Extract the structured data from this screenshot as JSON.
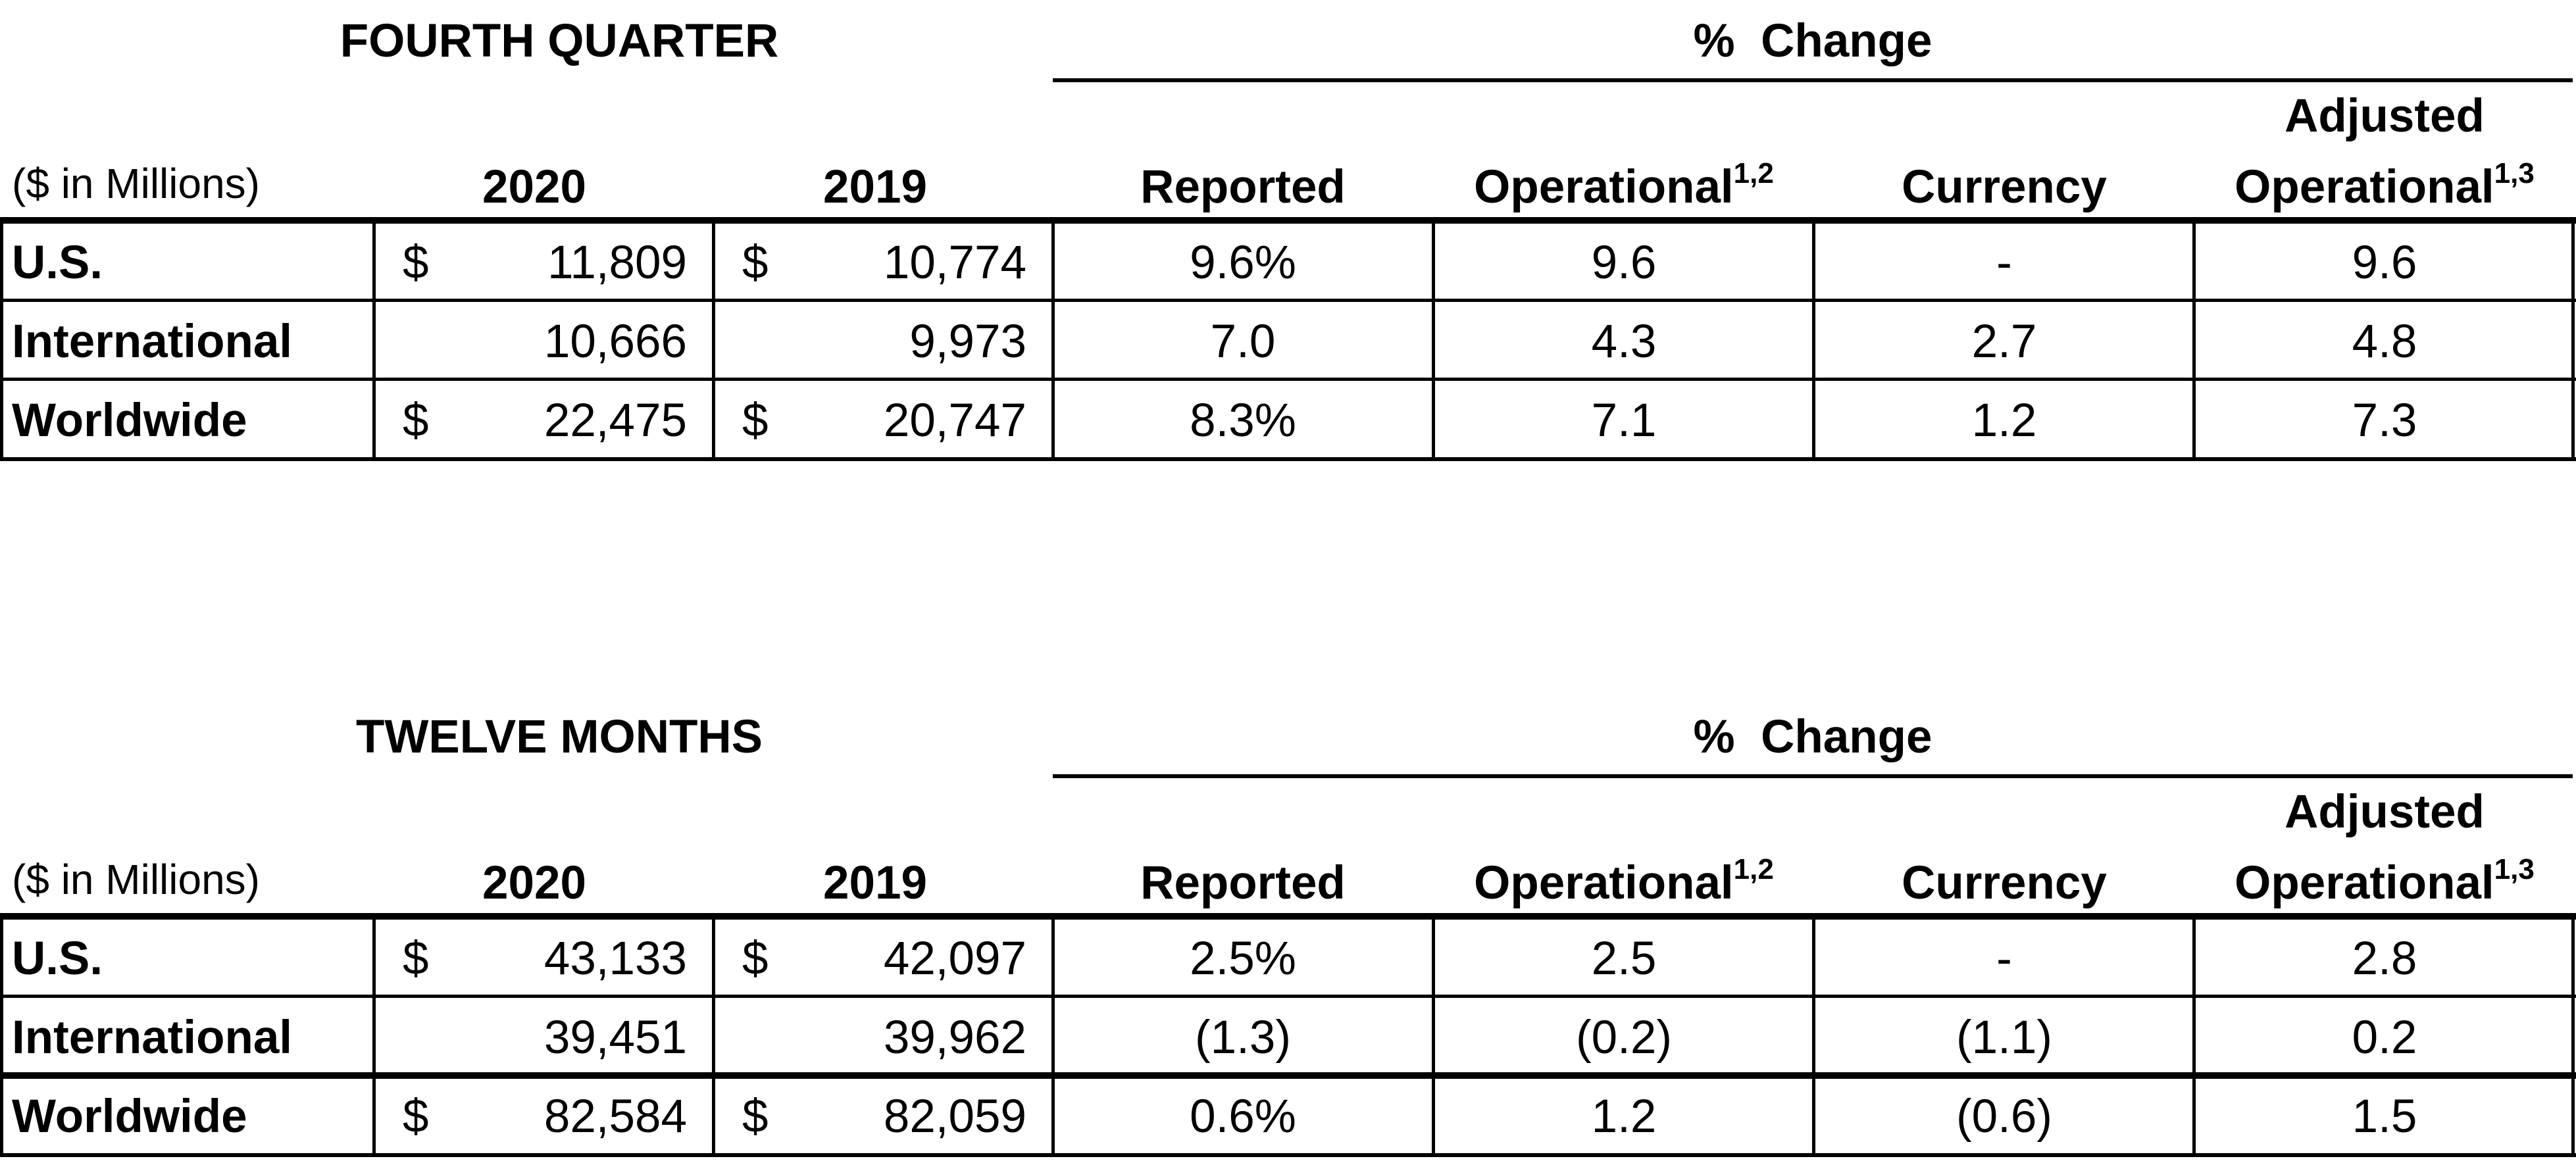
{
  "headers": {
    "units": "($ in Millions)",
    "year_2020": "2020",
    "year_2019": "2019",
    "pct_change": "%  Change",
    "reported": "Reported",
    "operational": "Operational",
    "operational_sup": "1,2",
    "currency": "Currency",
    "adjusted_line1": "Adjusted",
    "adjusted_line2": "Operational",
    "adjusted_sup": "1,3"
  },
  "quarter": {
    "title": "FOURTH QUARTER",
    "rows": [
      {
        "label": "U.S.",
        "d2020": "$",
        "v2020": "11,809",
        "d2019": "$",
        "v2019": "10,774",
        "reported": "9.6%",
        "operational": "9.6",
        "currency": "-",
        "adjusted": "9.6"
      },
      {
        "label": "International",
        "d2020": "",
        "v2020": "10,666",
        "d2019": "",
        "v2019": "9,973",
        "reported": "7.0",
        "operational": "4.3",
        "currency": "2.7",
        "adjusted": "4.8"
      },
      {
        "label": "Worldwide",
        "d2020": "$",
        "v2020": "22,475",
        "d2019": "$",
        "v2019": "20,747",
        "reported": "8.3%",
        "operational": "7.1",
        "currency": "1.2",
        "adjusted": "7.3"
      }
    ]
  },
  "year": {
    "title": "TWELVE MONTHS",
    "rows": [
      {
        "label": "U.S.",
        "d2020": "$",
        "v2020": "43,133",
        "d2019": "$",
        "v2019": "42,097",
        "reported": "2.5%",
        "operational": "2.5",
        "currency": "-",
        "adjusted": "2.8"
      },
      {
        "label": "International",
        "d2020": "",
        "v2020": "39,451",
        "d2019": "",
        "v2019": "39,962",
        "reported": "(1.3)",
        "operational": "(0.2)",
        "currency": "(1.1)",
        "adjusted": "0.2"
      },
      {
        "label": "Worldwide",
        "d2020": "$",
        "v2020": "82,584",
        "d2019": "$",
        "v2019": "82,059",
        "reported": "0.6%",
        "operational": "1.2",
        "currency": "(0.6)",
        "adjusted": "1.5"
      }
    ]
  }
}
